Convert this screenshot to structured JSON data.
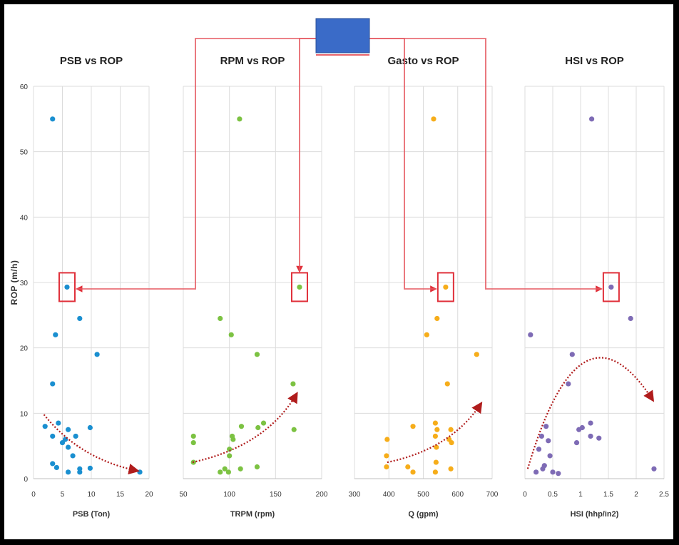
{
  "chart_data": [
    {
      "type": "scatter",
      "title": "PSB vs ROP",
      "xlabel": "PSB (Ton)",
      "ylabel": "ROP (m/h)",
      "xlim": [
        0,
        20
      ],
      "ylim": [
        0,
        60
      ],
      "xticks": [
        0,
        5,
        10,
        15,
        20
      ],
      "yticks": [
        0,
        10,
        20,
        30,
        40,
        50,
        60
      ],
      "color": "#1a8fd0",
      "trend": "decreasing",
      "highlight": [
        5.8,
        29.3
      ],
      "points": [
        [
          3.3,
          55
        ],
        [
          5.8,
          29.3
        ],
        [
          8,
          24.5
        ],
        [
          3.8,
          22
        ],
        [
          11,
          19
        ],
        [
          3.3,
          14.5
        ],
        [
          4.3,
          8.5
        ],
        [
          6,
          7.5
        ],
        [
          7.3,
          6.5
        ],
        [
          3.3,
          6.5
        ],
        [
          2,
          8
        ],
        [
          5,
          5.5
        ],
        [
          5.5,
          6
        ],
        [
          9.8,
          7.8
        ],
        [
          6,
          4.8
        ],
        [
          6.8,
          3.5
        ],
        [
          3.3,
          2.3
        ],
        [
          4,
          1.7
        ],
        [
          8,
          1.5
        ],
        [
          6,
          1
        ],
        [
          8,
          1
        ],
        [
          9.8,
          1.6
        ],
        [
          18.4,
          1
        ]
      ]
    },
    {
      "type": "scatter",
      "title": "RPM vs ROP",
      "xlabel": "TRPM (rpm)",
      "xlim": [
        50,
        200
      ],
      "ylim": [
        0,
        60
      ],
      "xticks": [
        50,
        100,
        150,
        200
      ],
      "color": "#7cc242",
      "trend": "increasing",
      "highlight": [
        176,
        29.3
      ],
      "points": [
        [
          111,
          55
        ],
        [
          176,
          29.3
        ],
        [
          90,
          24.5
        ],
        [
          102,
          22
        ],
        [
          130,
          19
        ],
        [
          169,
          14.5
        ],
        [
          170,
          7.5
        ],
        [
          61,
          6.5
        ],
        [
          61,
          5.5
        ],
        [
          61,
          2.5
        ],
        [
          103,
          6.5
        ],
        [
          104,
          6
        ],
        [
          113,
          8
        ],
        [
          131,
          7.8
        ],
        [
          137,
          8.5
        ],
        [
          100,
          4.5
        ],
        [
          100,
          3.5
        ],
        [
          90,
          1
        ],
        [
          95,
          1.5
        ],
        [
          99,
          1
        ],
        [
          112,
          1.5
        ],
        [
          130,
          1.8
        ]
      ]
    },
    {
      "type": "scatter",
      "title": "Gasto vs ROP",
      "xlabel": "Q (gpm)",
      "xlim": [
        300,
        700
      ],
      "ylim": [
        0,
        60
      ],
      "xticks": [
        300,
        400,
        500,
        600,
        700
      ],
      "color": "#f6ad1a",
      "trend": "increasing",
      "highlight": [
        565,
        29.3
      ],
      "points": [
        [
          530,
          55
        ],
        [
          565,
          29.3
        ],
        [
          540,
          24.5
        ],
        [
          510,
          22
        ],
        [
          655,
          19
        ],
        [
          570,
          14.5
        ],
        [
          395,
          6
        ],
        [
          393,
          3.5
        ],
        [
          393,
          1.8
        ],
        [
          455,
          1.8
        ],
        [
          470,
          8
        ],
        [
          470,
          1
        ],
        [
          535,
          8.5
        ],
        [
          540,
          7.5
        ],
        [
          535,
          6.5
        ],
        [
          538,
          4.8
        ],
        [
          537,
          2.5
        ],
        [
          535,
          1
        ],
        [
          580,
          7.5
        ],
        [
          575,
          6
        ],
        [
          582,
          5.5
        ],
        [
          580,
          1.5
        ]
      ]
    },
    {
      "type": "scatter",
      "title": "HSI vs ROP",
      "xlabel": "HSI (hhp/in2)",
      "xlim": [
        0,
        2.5
      ],
      "ylim": [
        0,
        60
      ],
      "xticks": [
        0,
        0.5,
        1,
        1.5,
        2,
        2.5
      ],
      "color": "#7e6bb5",
      "trend": "arched",
      "highlight": [
        1.55,
        29.3
      ],
      "points": [
        [
          1.2,
          55
        ],
        [
          1.55,
          29.3
        ],
        [
          1.9,
          24.5
        ],
        [
          0.1,
          22
        ],
        [
          0.85,
          19
        ],
        [
          0.78,
          14.5
        ],
        [
          0.3,
          6.5
        ],
        [
          0.38,
          8
        ],
        [
          0.42,
          5.8
        ],
        [
          0.25,
          4.5
        ],
        [
          0.45,
          3.5
        ],
        [
          0.35,
          2
        ],
        [
          0.32,
          1.5
        ],
        [
          0.2,
          1
        ],
        [
          0.5,
          1
        ],
        [
          0.6,
          0.8
        ],
        [
          0.93,
          5.5
        ],
        [
          0.97,
          7.5
        ],
        [
          1.03,
          7.8
        ],
        [
          1.18,
          8.5
        ],
        [
          1.18,
          6.5
        ],
        [
          1.33,
          6.2
        ],
        [
          2.32,
          1.5
        ]
      ]
    }
  ],
  "colors": {
    "callout": "#e0303a",
    "trend": "#b01c1c",
    "callout_box": "#3a6bc8"
  }
}
